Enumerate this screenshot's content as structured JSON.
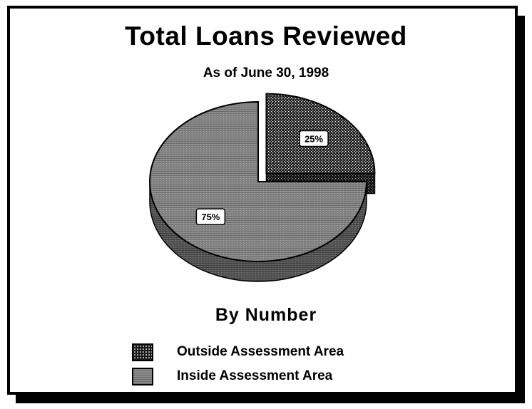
{
  "chart_data": {
    "type": "pie",
    "title": "Total Loans Reviewed",
    "subtitle": "As of June 30, 1998",
    "caption": "By Number",
    "slices": [
      {
        "label": "Outside Assessment Area",
        "value": 25,
        "display": "25%",
        "pattern": "dots",
        "exploded": true
      },
      {
        "label": "Inside Assessment Area",
        "value": 75,
        "display": "75%",
        "pattern": "lines",
        "exploded": false
      }
    ],
    "legend_placement": "bottom"
  }
}
